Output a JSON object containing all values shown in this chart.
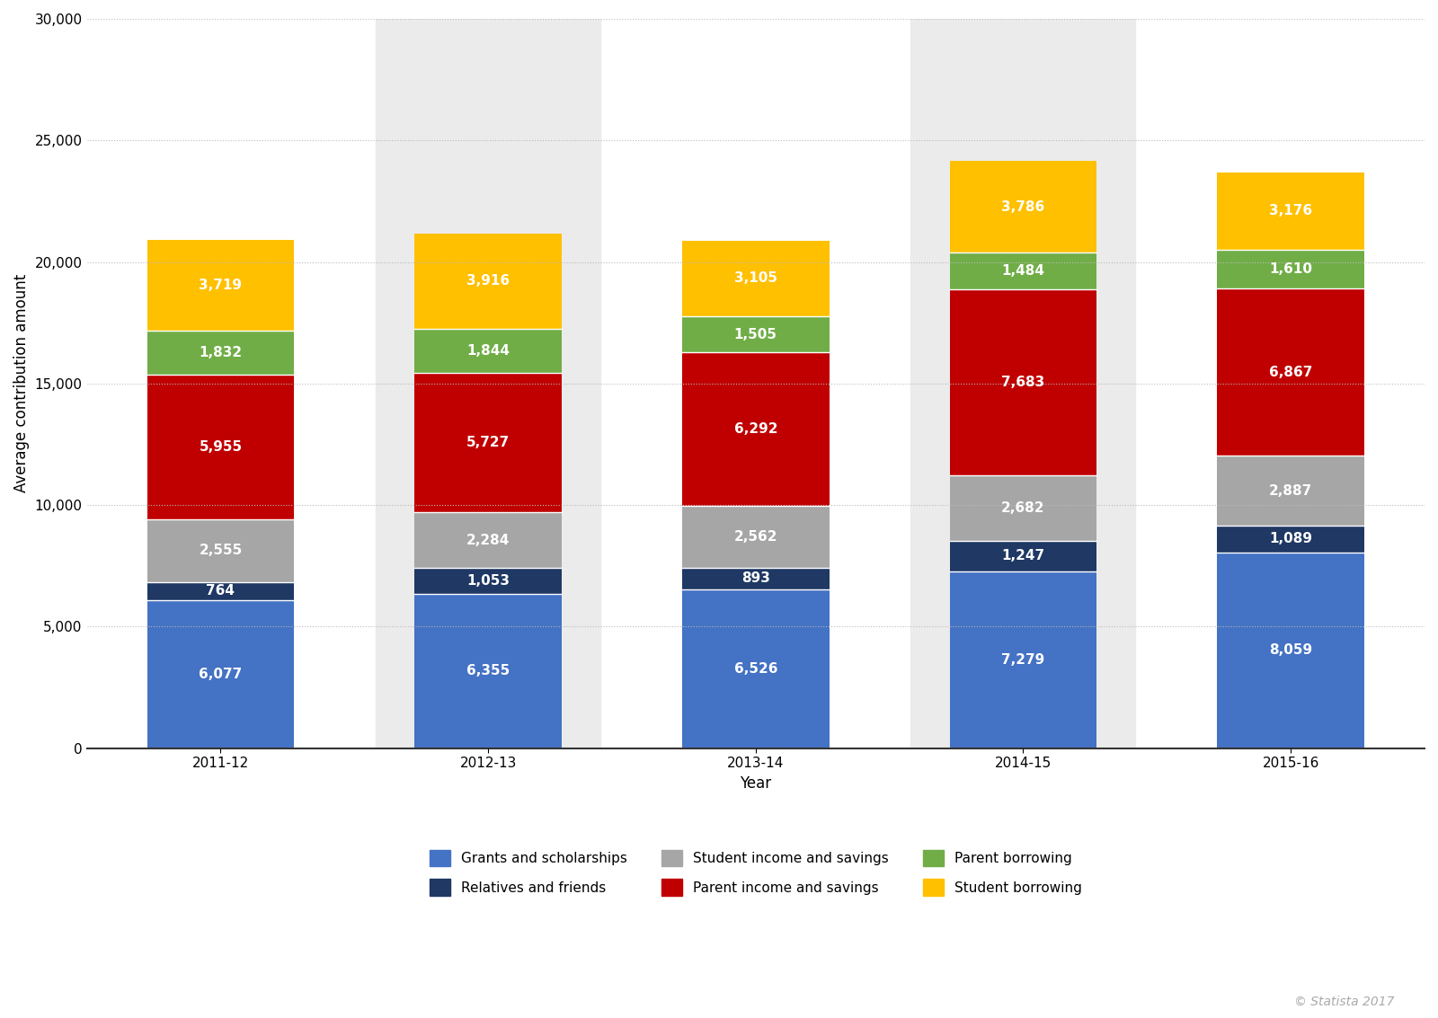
{
  "years": [
    "2011-12",
    "2012-13",
    "2013-14",
    "2014-15",
    "2015-16"
  ],
  "grants_scholarships": [
    6077,
    6355,
    6526,
    7279,
    8059
  ],
  "relatives_friends": [
    764,
    1053,
    893,
    1247,
    1089
  ],
  "student_income_savings": [
    2555,
    2284,
    2562,
    2682,
    2887
  ],
  "parent_income_savings": [
    5955,
    5727,
    6292,
    7683,
    6867
  ],
  "parent_borrowing": [
    1832,
    1844,
    1505,
    1484,
    1610
  ],
  "student_borrowing": [
    3719,
    3916,
    3105,
    3786,
    3176
  ],
  "colors": {
    "grants_scholarships": "#4472C4",
    "relatives_friends": "#1F3864",
    "student_income_savings": "#A6A6A6",
    "parent_income_savings": "#C00000",
    "parent_borrowing": "#70AD47",
    "student_borrowing": "#FFC000"
  },
  "labels": {
    "grants_scholarships": "Grants and scholarships",
    "relatives_friends": "Relatives and friends",
    "student_income_savings": "Student income and savings",
    "parent_income_savings": "Parent income and savings",
    "parent_borrowing": "Parent borrowing",
    "student_borrowing": "Student borrowing"
  },
  "ylabel": "Average contribution amount",
  "xlabel": "Year",
  "ylim": [
    0,
    30000
  ],
  "yticks": [
    0,
    5000,
    10000,
    15000,
    20000,
    25000,
    30000
  ],
  "background_color": "#FFFFFF",
  "bar_bg_color": "#EBEBEB",
  "axis_fontsize": 12,
  "tick_fontsize": 11,
  "bar_width": 0.55,
  "copyright": "© Statista 2017",
  "bar_label_fontsize": 11,
  "bar_label_color": "white"
}
